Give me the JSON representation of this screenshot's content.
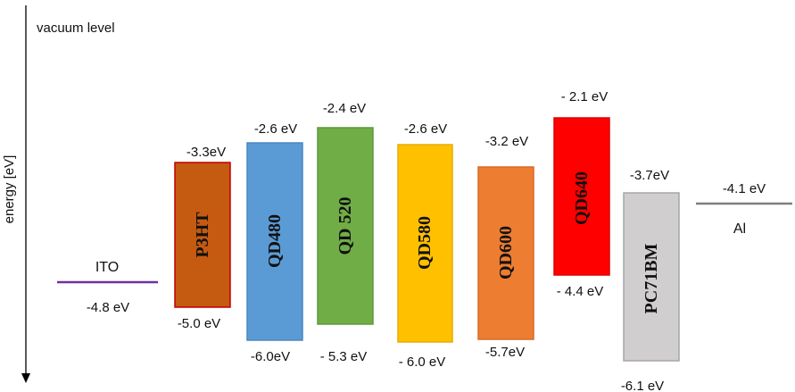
{
  "axis": {
    "top_label": "vacuum level",
    "label": "energy [eV]"
  },
  "electrodes": [
    {
      "name": "ITO",
      "level": "-4.8 eV",
      "color": "#7030a0"
    },
    {
      "name": "Al",
      "level": "-4.1 eV",
      "color": "#7f7f7f"
    }
  ],
  "bands": [
    {
      "name": "P3HT",
      "top": "-3.3eV",
      "bottom": "-5.0 eV",
      "fill": "#c55a11",
      "stroke": "#c00000"
    },
    {
      "name": "QD480",
      "top": "-2.6 eV",
      "bottom": "-6.0eV",
      "fill": "#5b9bd5",
      "stroke": "#4a86c0"
    },
    {
      "name": "QD 520",
      "top": "-2.4 eV",
      "bottom": "- 5.3 eV",
      "fill": "#70ad47",
      "stroke": "#5e9a3a"
    },
    {
      "name": "QD580",
      "top": "-2.6 eV",
      "bottom": "- 6.0 eV",
      "fill": "#ffc000",
      "stroke": "#e5ad00"
    },
    {
      "name": "QD600",
      "top": "-3.2 eV",
      "bottom": "-5.7eV",
      "fill": "#ed7d31",
      "stroke": "#d56d25"
    },
    {
      "name": "QD640",
      "top": "- 2.1 eV",
      "bottom": "- 4.4 eV",
      "fill": "#ff0000",
      "stroke": "#e00000"
    },
    {
      "name": "PC71BM",
      "top": "-3.7eV",
      "bottom": "-6.1 eV",
      "fill": "#d0cece",
      "stroke": "#a6a6a6"
    }
  ]
}
